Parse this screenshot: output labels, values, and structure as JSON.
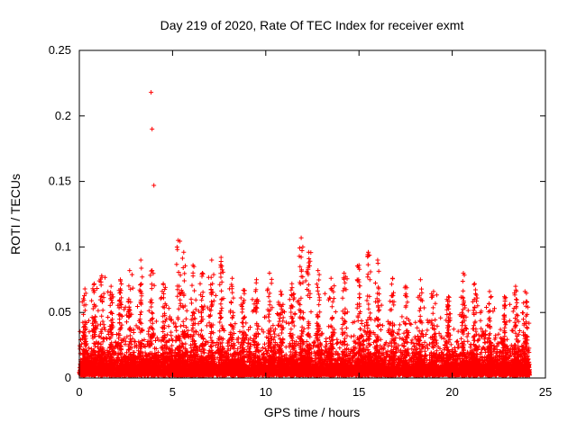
{
  "chart_data": {
    "type": "scatter",
    "title": "Day 219 of 2020, Rate Of TEC Index for receiver exmt",
    "xlabel": "GPS time / hours",
    "ylabel": "ROTI / TECUs",
    "xlim": [
      0,
      25
    ],
    "ylim": [
      0,
      0.25
    ],
    "xticks": [
      0,
      5,
      10,
      15,
      20,
      25
    ],
    "xtick_labels": [
      "0",
      "5",
      "10",
      "15",
      "20",
      "25"
    ],
    "yticks": [
      0,
      0.05,
      0.1,
      0.15,
      0.2,
      0.25
    ],
    "ytick_labels": [
      "0",
      "0.05",
      "0.1",
      "0.15",
      "0.2",
      "0.25"
    ],
    "grid": false,
    "legend": "none",
    "marker": "plus",
    "marker_color": "#ff0000",
    "axis_color": "#000000",
    "background_color": "#ffffff",
    "outliers": [
      [
        3.85,
        0.218
      ],
      [
        3.9,
        0.19
      ],
      [
        4.0,
        0.147
      ]
    ],
    "band": {
      "x_min": 0.0,
      "x_max": 24.15,
      "y_floor": 0.002,
      "typical_max": 0.05,
      "n_points": 9000
    },
    "spikes": [
      [
        0.3,
        0.068
      ],
      [
        0.8,
        0.072
      ],
      [
        1.2,
        0.078
      ],
      [
        1.7,
        0.07
      ],
      [
        2.2,
        0.075
      ],
      [
        2.7,
        0.082
      ],
      [
        3.3,
        0.09
      ],
      [
        3.9,
        0.082
      ],
      [
        4.5,
        0.072
      ],
      [
        5.3,
        0.105
      ],
      [
        5.6,
        0.096
      ],
      [
        6.1,
        0.086
      ],
      [
        6.6,
        0.08
      ],
      [
        7.1,
        0.09
      ],
      [
        7.6,
        0.092
      ],
      [
        8.2,
        0.076
      ],
      [
        8.8,
        0.067
      ],
      [
        9.5,
        0.075
      ],
      [
        10.2,
        0.08
      ],
      [
        10.8,
        0.066
      ],
      [
        11.4,
        0.072
      ],
      [
        11.9,
        0.107
      ],
      [
        12.3,
        0.096
      ],
      [
        12.8,
        0.082
      ],
      [
        13.5,
        0.076
      ],
      [
        14.2,
        0.08
      ],
      [
        15.0,
        0.086
      ],
      [
        15.5,
        0.096
      ],
      [
        16.0,
        0.09
      ],
      [
        16.8,
        0.076
      ],
      [
        17.5,
        0.07
      ],
      [
        18.3,
        0.075
      ],
      [
        19.0,
        0.066
      ],
      [
        19.8,
        0.062
      ],
      [
        20.6,
        0.08
      ],
      [
        21.2,
        0.072
      ],
      [
        22.0,
        0.066
      ],
      [
        22.8,
        0.062
      ],
      [
        23.4,
        0.07
      ],
      [
        23.9,
        0.066
      ]
    ]
  }
}
